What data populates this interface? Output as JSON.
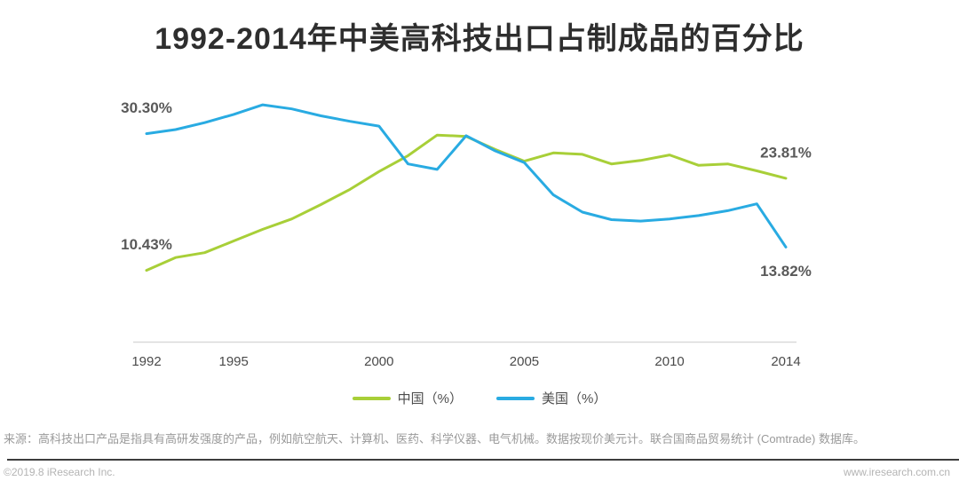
{
  "chart_data": {
    "type": "line",
    "title": "1992-2014年中美高科技出口占制成品的百分比",
    "x": [
      1992,
      1993,
      1994,
      1995,
      1996,
      1997,
      1998,
      1999,
      2000,
      2001,
      2002,
      2003,
      2004,
      2005,
      2006,
      2007,
      2008,
      2009,
      2010,
      2011,
      2012,
      2013,
      2014
    ],
    "series": [
      {
        "name": "中国（%）",
        "color": "#a8cf38",
        "values": [
          10.43,
          12.3,
          13.0,
          14.7,
          16.4,
          17.9,
          20.0,
          22.2,
          24.8,
          27.1,
          30.1,
          29.9,
          28.0,
          26.3,
          27.5,
          27.3,
          25.9,
          26.4,
          27.2,
          25.7,
          25.9,
          24.9,
          23.81
        ]
      },
      {
        "name": "美国（%）",
        "color": "#29abe2",
        "values": [
          30.3,
          30.9,
          31.9,
          33.1,
          34.5,
          33.9,
          32.9,
          32.1,
          31.4,
          25.9,
          25.1,
          30.0,
          27.8,
          26.1,
          21.4,
          18.9,
          17.8,
          17.6,
          17.9,
          18.4,
          19.1,
          20.1,
          13.82
        ]
      }
    ],
    "xticks": [
      1992,
      1995,
      2000,
      2005,
      2010,
      2014
    ],
    "ylim": [
      0,
      38
    ],
    "grid": false,
    "legend_position": "bottom",
    "axis_color": "#d9d9d9",
    "tick_color": "#4a4a4a",
    "annotation_color": "#595959",
    "annotations": [
      {
        "text": "30.30%",
        "series": "美国（%）",
        "year": 1992,
        "value": 30.3,
        "placement": "above"
      },
      {
        "text": "10.43%",
        "series": "中国（%）",
        "year": 1992,
        "value": 10.43,
        "placement": "above"
      },
      {
        "text": "23.81%",
        "series": "中国（%）",
        "year": 2014,
        "value": 23.81,
        "placement": "above"
      },
      {
        "text": "13.82%",
        "series": "美国（%）",
        "year": 2014,
        "value": 13.82,
        "placement": "below"
      }
    ]
  },
  "footer": {
    "source": "来源：高科技出口产品是指具有高研发强度的产品，例如航空航天、计算机、医药、科学仪器、电气机械。数据按现价美元计。联合国商品贸易统计 (Comtrade) 数据库。"
  },
  "bottom_bar": {
    "copyright": "©2019.8 iResearch Inc.",
    "website": "www.iresearch.com.cn"
  }
}
